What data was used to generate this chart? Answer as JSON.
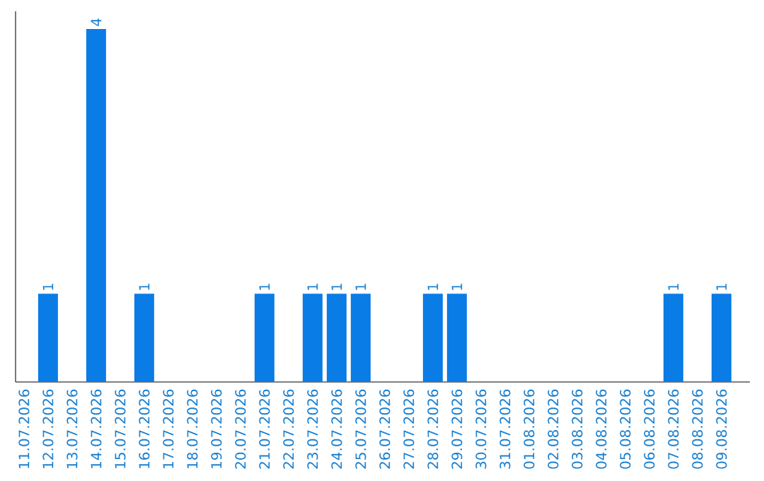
{
  "chart_data": {
    "type": "bar",
    "categories": [
      "11.07.2026",
      "12.07.2026",
      "13.07.2026",
      "14.07.2026",
      "15.07.2026",
      "16.07.2026",
      "17.07.2026",
      "18.07.2026",
      "19.07.2026",
      "20.07.2026",
      "21.07.2026",
      "22.07.2026",
      "23.07.2026",
      "24.07.2026",
      "25.07.2026",
      "26.07.2026",
      "27.07.2026",
      "28.07.2026",
      "29.07.2026",
      "30.07.2026",
      "31.07.2026",
      "01.08.2026",
      "02.08.2026",
      "03.08.2026",
      "04.08.2026",
      "05.08.2026",
      "06.08.2026",
      "07.08.2026",
      "08.08.2026",
      "09.08.2026"
    ],
    "values": [
      0,
      1,
      0,
      4,
      0,
      1,
      0,
      0,
      0,
      0,
      1,
      0,
      1,
      1,
      1,
      0,
      0,
      1,
      1,
      0,
      0,
      0,
      0,
      0,
      0,
      0,
      0,
      1,
      0,
      1
    ],
    "value_labels": [
      null,
      "1",
      null,
      "4",
      null,
      "1",
      null,
      null,
      null,
      null,
      "1",
      null,
      "1",
      "1",
      "1",
      null,
      null,
      "1",
      "1",
      null,
      null,
      null,
      null,
      null,
      null,
      null,
      null,
      "1",
      null,
      "1"
    ],
    "color": "#0a7ce6",
    "ylim": [
      0,
      4.2
    ]
  }
}
